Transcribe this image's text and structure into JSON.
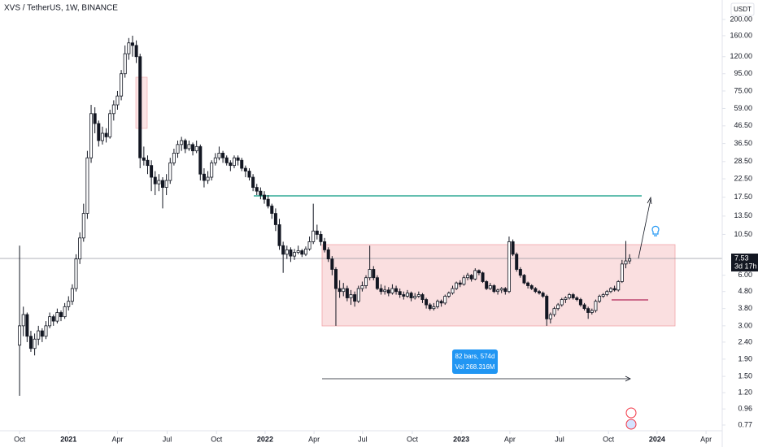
{
  "chart_data": {
    "type": "candlestick",
    "title": "XVS / TetherUS, 1W, BINANCE",
    "currency": "USDT",
    "countdown": "3d 17h",
    "measure": {
      "bars": "82 bars, 574d",
      "volume": "Vol 268.316M"
    },
    "log_scale": true,
    "up_color": "#ffffff",
    "down_color": "#131722",
    "ylim": [
      0.712,
      261
    ],
    "yticks": [
      {
        "value": 200,
        "label": "200.00"
      },
      {
        "value": 160,
        "label": "160.00"
      },
      {
        "value": 120,
        "label": "120.00"
      },
      {
        "value": 95,
        "label": "95.00"
      },
      {
        "value": 75,
        "label": "75.00"
      },
      {
        "value": 59,
        "label": "59.00"
      },
      {
        "value": 46.5,
        "label": "46.50"
      },
      {
        "value": 36.5,
        "label": "36.50"
      },
      {
        "value": 28.5,
        "label": "28.50"
      },
      {
        "value": 22.5,
        "label": "22.50"
      },
      {
        "value": 17.5,
        "label": "17.50"
      },
      {
        "value": 13.5,
        "label": "13.50"
      },
      {
        "value": 10.5,
        "label": "10.50"
      },
      {
        "value": 6,
        "label": "6.00"
      },
      {
        "value": 4.8,
        "label": "4.80"
      },
      {
        "value": 3.8,
        "label": "3.80"
      },
      {
        "value": 3,
        "label": "3.00"
      },
      {
        "value": 2.4,
        "label": "2.40"
      },
      {
        "value": 1.9,
        "label": "1.90"
      },
      {
        "value": 1.5,
        "label": "1.50"
      },
      {
        "value": 1.2,
        "label": "1.20"
      },
      {
        "value": 0.96,
        "label": "0.96"
      },
      {
        "value": 0.77,
        "label": "0.77"
      }
    ],
    "xlim": [
      -5.2,
      186.6
    ],
    "xticks": [
      {
        "value": 0,
        "label": "Oct"
      },
      {
        "value": 13,
        "label": "2021"
      },
      {
        "value": 26,
        "label": "Apr"
      },
      {
        "value": 39.2,
        "label": "Jul"
      },
      {
        "value": 52.3,
        "label": "Oct"
      },
      {
        "value": 65.2,
        "label": "2022"
      },
      {
        "value": 78.2,
        "label": "Apr"
      },
      {
        "value": 91.1,
        "label": "Jul"
      },
      {
        "value": 104.3,
        "label": "Oct"
      },
      {
        "value": 117.3,
        "label": "2023"
      },
      {
        "value": 130.2,
        "label": "Apr"
      },
      {
        "value": 143.4,
        "label": "Jul"
      },
      {
        "value": 156.4,
        "label": "Oct"
      },
      {
        "value": 169.3,
        "label": "2024"
      },
      {
        "value": 182.3,
        "label": "Apr"
      }
    ],
    "candles": [
      [
        2.3,
        9.0,
        1.15,
        3.0
      ],
      [
        3.0,
        3.9,
        2.6,
        3.5
      ],
      [
        3.5,
        3.6,
        2.4,
        2.6
      ],
      [
        2.6,
        2.8,
        2.1,
        2.2
      ],
      [
        2.2,
        2.7,
        2.0,
        2.5
      ],
      [
        2.5,
        3.0,
        2.3,
        2.8
      ],
      [
        2.8,
        2.9,
        2.4,
        2.6
      ],
      [
        2.6,
        3.2,
        2.5,
        3.0
      ],
      [
        3.0,
        3.6,
        2.9,
        3.4
      ],
      [
        3.4,
        3.5,
        3.0,
        3.2
      ],
      [
        3.2,
        3.8,
        3.1,
        3.6
      ],
      [
        3.6,
        3.7,
        3.2,
        3.4
      ],
      [
        3.4,
        4.1,
        3.3,
        3.9
      ],
      [
        3.9,
        4.5,
        3.7,
        4.2
      ],
      [
        4.2,
        5.3,
        4.0,
        5.0
      ],
      [
        5.0,
        8.0,
        4.8,
        7.5
      ],
      [
        7.5,
        10.8,
        7.0,
        10.0
      ],
      [
        10.0,
        16,
        9.5,
        14
      ],
      [
        14,
        33,
        13,
        30
      ],
      [
        30,
        62,
        28,
        55
      ],
      [
        55,
        60,
        42,
        48
      ],
      [
        48,
        50,
        35,
        38
      ],
      [
        38,
        46,
        36,
        42
      ],
      [
        42,
        45,
        37,
        40
      ],
      [
        40,
        58,
        39,
        55
      ],
      [
        55,
        66,
        50,
        62
      ],
      [
        62,
        75,
        58,
        70
      ],
      [
        70,
        100,
        66,
        95
      ],
      [
        95,
        140,
        90,
        125
      ],
      [
        125,
        155,
        115,
        145
      ],
      [
        145,
        160,
        120,
        140
      ],
      [
        140,
        150,
        110,
        120
      ],
      [
        120,
        125,
        26,
        30
      ],
      [
        30,
        35,
        27,
        29
      ],
      [
        29,
        31,
        24,
        27
      ],
      [
        27,
        29,
        19,
        23
      ],
      [
        23,
        25,
        18,
        21
      ],
      [
        21,
        24,
        19,
        22
      ],
      [
        22,
        23,
        15,
        20
      ],
      [
        20,
        24,
        18,
        22
      ],
      [
        22,
        30,
        21,
        28
      ],
      [
        28,
        34,
        27,
        32
      ],
      [
        32,
        38,
        30,
        36
      ],
      [
        36,
        40,
        33,
        38
      ],
      [
        38,
        39,
        32,
        34
      ],
      [
        34,
        38,
        33,
        36
      ],
      [
        36,
        37,
        31,
        33
      ],
      [
        33,
        38,
        32,
        35
      ],
      [
        35,
        36,
        22,
        24
      ],
      [
        24,
        26,
        20,
        22
      ],
      [
        22,
        25,
        21,
        23
      ],
      [
        23,
        29,
        22,
        28
      ],
      [
        28,
        32,
        27,
        30
      ],
      [
        30,
        35,
        29,
        32
      ],
      [
        32,
        33,
        28,
        30
      ],
      [
        30,
        31,
        27,
        28
      ],
      [
        28,
        29,
        25,
        27
      ],
      [
        27,
        31,
        26,
        30
      ],
      [
        30,
        31,
        27,
        29
      ],
      [
        29,
        30,
        25,
        26
      ],
      [
        26,
        27,
        23,
        25
      ],
      [
        25,
        26,
        22,
        23
      ],
      [
        23,
        24,
        19,
        20
      ],
      [
        20,
        21,
        18,
        19
      ],
      [
        19,
        20,
        17,
        18
      ],
      [
        18,
        19,
        16,
        17
      ],
      [
        17,
        18,
        15,
        15.5
      ],
      [
        15.5,
        16,
        13,
        14
      ],
      [
        14,
        15,
        11,
        12
      ],
      [
        12,
        13,
        8.5,
        9
      ],
      [
        9,
        9.5,
        6.2,
        8.0
      ],
      [
        8.0,
        9.0,
        7.5,
        8.5
      ],
      [
        8.5,
        8.8,
        7.2,
        7.8
      ],
      [
        7.8,
        8.6,
        7.4,
        8.2
      ],
      [
        8.2,
        9.0,
        8.0,
        8.4
      ],
      [
        8.4,
        8.6,
        7.7,
        8.0
      ],
      [
        8.0,
        8.9,
        7.8,
        8.6
      ],
      [
        8.6,
        10.2,
        8.4,
        9.5
      ],
      [
        9.5,
        16,
        9.2,
        11
      ],
      [
        11,
        12,
        9.8,
        10.5
      ],
      [
        10.5,
        11,
        9.0,
        9.5
      ],
      [
        9.5,
        10,
        8.2,
        8.5
      ],
      [
        8.5,
        8.8,
        7.2,
        7.5
      ],
      [
        7.5,
        7.8,
        6.0,
        6.5
      ],
      [
        6.5,
        6.7,
        3.0,
        5.0
      ],
      [
        5.0,
        5.6,
        4.4,
        4.8
      ],
      [
        4.8,
        5.4,
        4.5,
        5.0
      ],
      [
        5.0,
        5.2,
        4.2,
        4.4
      ],
      [
        4.4,
        4.9,
        4.0,
        4.6
      ],
      [
        4.6,
        4.8,
        3.9,
        4.2
      ],
      [
        4.2,
        5.2,
        4.1,
        5.0
      ],
      [
        5.0,
        5.5,
        4.8,
        5.2
      ],
      [
        5.2,
        6.0,
        5.0,
        5.8
      ],
      [
        5.8,
        9.0,
        5.6,
        6.5
      ],
      [
        6.5,
        6.8,
        5.6,
        5.8
      ],
      [
        5.8,
        6.0,
        4.9,
        5.0
      ],
      [
        5.0,
        5.3,
        4.6,
        4.8
      ],
      [
        4.8,
        5.2,
        4.6,
        4.9
      ],
      [
        4.9,
        5.1,
        4.5,
        4.7
      ],
      [
        4.7,
        5.3,
        4.6,
        5.0
      ],
      [
        5.0,
        5.2,
        4.6,
        4.8
      ],
      [
        4.8,
        5.0,
        4.4,
        4.6
      ],
      [
        4.6,
        4.8,
        4.3,
        4.5
      ],
      [
        4.5,
        4.9,
        4.4,
        4.7
      ],
      [
        4.7,
        4.8,
        4.2,
        4.4
      ],
      [
        4.4,
        4.7,
        4.3,
        4.5
      ],
      [
        4.5,
        4.8,
        4.4,
        4.6
      ],
      [
        4.6,
        4.7,
        4.1,
        4.3
      ],
      [
        4.3,
        4.4,
        3.8,
        4.0
      ],
      [
        4.0,
        4.1,
        3.7,
        3.8
      ],
      [
        3.8,
        4.1,
        3.7,
        3.9
      ],
      [
        3.9,
        4.3,
        3.8,
        4.2
      ],
      [
        4.2,
        4.3,
        3.9,
        4.1
      ],
      [
        4.1,
        4.6,
        4.0,
        4.5
      ],
      [
        4.5,
        4.8,
        4.4,
        4.7
      ],
      [
        4.7,
        5.2,
        4.6,
        5.0
      ],
      [
        5.0,
        5.5,
        4.9,
        5.4
      ],
      [
        5.4,
        5.6,
        5.1,
        5.3
      ],
      [
        5.3,
        6.0,
        5.2,
        5.8
      ],
      [
        5.8,
        6.2,
        5.6,
        6.0
      ],
      [
        6.0,
        6.1,
        5.5,
        5.7
      ],
      [
        5.7,
        6.6,
        5.6,
        6.4
      ],
      [
        6.4,
        6.5,
        6.0,
        6.2
      ],
      [
        6.2,
        6.3,
        5.4,
        5.5
      ],
      [
        5.5,
        5.6,
        4.9,
        5.0
      ],
      [
        5.0,
        5.4,
        4.9,
        5.2
      ],
      [
        5.2,
        5.3,
        4.7,
        4.8
      ],
      [
        4.8,
        5.0,
        4.6,
        4.9
      ],
      [
        4.9,
        5.1,
        4.7,
        5.0
      ],
      [
        5.0,
        5.1,
        4.6,
        4.8
      ],
      [
        4.8,
        10.2,
        4.7,
        9.5
      ],
      [
        9.5,
        9.8,
        7.8,
        8.0
      ],
      [
        8.0,
        8.2,
        6.3,
        6.5
      ],
      [
        6.5,
        6.7,
        5.8,
        6.0
      ],
      [
        6.0,
        6.1,
        5.3,
        5.4
      ],
      [
        5.4,
        5.5,
        5.0,
        5.2
      ],
      [
        5.2,
        5.3,
        4.9,
        5.0
      ],
      [
        5.0,
        5.1,
        4.7,
        4.8
      ],
      [
        4.8,
        4.9,
        4.6,
        4.7
      ],
      [
        4.7,
        4.8,
        4.4,
        4.5
      ],
      [
        4.5,
        4.6,
        3.0,
        3.3
      ],
      [
        3.3,
        3.6,
        3.1,
        3.5
      ],
      [
        3.5,
        3.9,
        3.4,
        3.8
      ],
      [
        3.8,
        4.1,
        3.7,
        4.0
      ],
      [
        4.0,
        4.4,
        3.9,
        4.3
      ],
      [
        4.3,
        4.5,
        4.1,
        4.4
      ],
      [
        4.4,
        4.7,
        4.3,
        4.6
      ],
      [
        4.6,
        4.7,
        4.3,
        4.4
      ],
      [
        4.4,
        4.5,
        4.2,
        4.3
      ],
      [
        4.3,
        4.4,
        3.9,
        4.0
      ],
      [
        4.0,
        4.1,
        3.7,
        3.8
      ],
      [
        3.8,
        3.9,
        3.3,
        3.6
      ],
      [
        3.6,
        3.8,
        3.5,
        3.7
      ],
      [
        3.7,
        4.3,
        3.6,
        4.2
      ],
      [
        4.2,
        4.6,
        4.1,
        4.5
      ],
      [
        4.5,
        4.7,
        4.4,
        4.6
      ],
      [
        4.6,
        4.9,
        4.5,
        4.8
      ],
      [
        4.8,
        5.1,
        4.7,
        5.0
      ],
      [
        5.0,
        5.2,
        4.8,
        4.9
      ],
      [
        4.9,
        5.6,
        4.8,
        5.5
      ],
      [
        5.5,
        7.4,
        5.4,
        7.0
      ],
      [
        7.0,
        9.6,
        6.6,
        7.3
      ],
      [
        7.3,
        8.0,
        7.0,
        7.53
      ]
    ]
  }
}
